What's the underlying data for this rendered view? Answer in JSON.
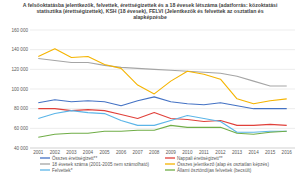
{
  "chart_data": {
    "type": "line",
    "title": "A felsőoktatásba jelentkezők, felvettek, érettségizettek és a 18 évesek létszáma (adatforrás: közoktatási statisztika (érettségizettek), KSH (18 évesek), FELVI (Jelentkezők és felvettek az osztatlan és alapképzésbe",
    "categories": [
      "2001",
      "2002",
      "2003",
      "2004",
      "2005",
      "2006",
      "2007",
      "2008",
      "2009",
      "2010",
      "2011",
      "2012",
      "2013",
      "2014",
      "2015",
      "2016"
    ],
    "series": [
      {
        "name": "Összes érettségizett**",
        "color": "#4472c4",
        "values": [
          86000,
          89000,
          87000,
          88000,
          87000,
          83000,
          88000,
          92000,
          87000,
          85000,
          84000,
          86000,
          83000,
          80000,
          80000,
          80000
        ]
      },
      {
        "name": "Nappali érettségizett**",
        "color": "#e0403a",
        "values": [
          80000,
          80000,
          78000,
          79000,
          78000,
          74000,
          70000,
          76000,
          70000,
          69000,
          67000,
          68000,
          63000,
          63000,
          64000,
          63000
        ]
      },
      {
        "name": "18 évesek száma (2001-2005 nem számolható)",
        "color": "#a5a5a5",
        "values": [
          131000,
          129000,
          127000,
          127000,
          124000,
          122000,
          121000,
          120000,
          119000,
          118000,
          117000,
          116000,
          113000,
          108000,
          103000,
          103000
        ]
      },
      {
        "name": "Összes jelentkező (alap és osztatlan képzés)",
        "color": "#f5b400",
        "values": [
          133000,
          141000,
          132000,
          133000,
          125000,
          121000,
          104000,
          95000,
          108000,
          118000,
          115000,
          110000,
          90000,
          85000,
          88000,
          90000
        ]
      },
      {
        "name": "Felvettek*",
        "color": "#5bb5e8",
        "values": [
          70000,
          75000,
          78000,
          76000,
          75000,
          68000,
          63000,
          63000,
          68000,
          73000,
          70000,
          67000,
          56000,
          56000,
          57000,
          57000
        ]
      },
      {
        "name": "Állami ösztöndíjas felvettek (becsült)",
        "color": "#70ad47",
        "values": [
          51000,
          54000,
          55000,
          55000,
          57000,
          57000,
          58000,
          58000,
          63000,
          61000,
          61000,
          61000,
          55000,
          54000,
          56000,
          57000
        ]
      }
    ],
    "ylim": [
      40000,
      160000
    ],
    "yticks": [
      {
        "value": 40000,
        "label": "40 000"
      },
      {
        "value": 60000,
        "label": "60 000"
      },
      {
        "value": 80000,
        "label": "80 000"
      },
      {
        "value": 100000,
        "label": "100 000"
      },
      {
        "value": 120000,
        "label": "120 000"
      },
      {
        "value": 140000,
        "label": "140 000"
      },
      {
        "value": 160000,
        "label": "160 000"
      }
    ],
    "grid": true,
    "legend": "bottom"
  }
}
